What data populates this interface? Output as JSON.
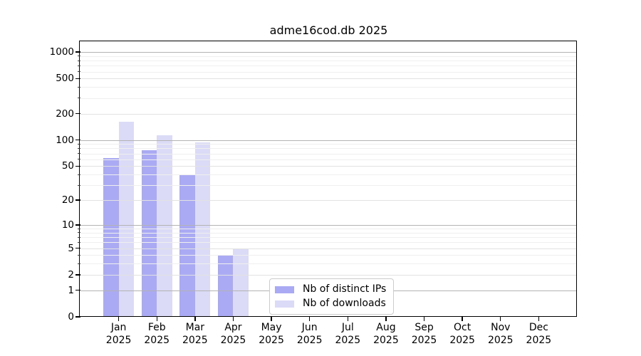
{
  "title": "adme16cod.db 2025",
  "chart_data": {
    "type": "bar",
    "title": "adme16cod.db 2025",
    "categories": [
      "Jan 2025",
      "Feb 2025",
      "Mar 2025",
      "Apr 2025",
      "May 2025",
      "Jun 2025",
      "Jul 2025",
      "Aug 2025",
      "Sep 2025",
      "Oct 2025",
      "Nov 2025",
      "Dec 2025"
    ],
    "series": [
      {
        "name": "Nb of distinct IPs",
        "color": "#a9a9f4",
        "values": [
          62,
          76,
          39,
          4,
          0,
          0,
          0,
          0,
          0,
          0,
          0,
          0
        ]
      },
      {
        "name": "Nb of downloads",
        "color": "#dbdbf8",
        "values": [
          162,
          113,
          94,
          5,
          0,
          0,
          0,
          0,
          0,
          0,
          0,
          0
        ]
      }
    ],
    "xlabel": "",
    "ylabel": "",
    "y_scale": "log1p",
    "y_ticks": [
      0,
      1,
      2,
      5,
      10,
      20,
      50,
      100,
      200,
      500,
      1000
    ],
    "y_minor_ticks": [
      3,
      4,
      6,
      7,
      8,
      9,
      30,
      40,
      60,
      70,
      80,
      90,
      300,
      400,
      600,
      700,
      800,
      900
    ],
    "ylim": [
      0,
      1300
    ],
    "grid": true,
    "grid_over_bars": true,
    "legend_position": "lower center",
    "colors": {
      "axis": "#000000",
      "grid_major": "#b3b3b3",
      "grid_mid": "#e2e2e2",
      "grid_minor": "#efefef",
      "legend_border": "#cccccc",
      "background": "#ffffff"
    }
  }
}
